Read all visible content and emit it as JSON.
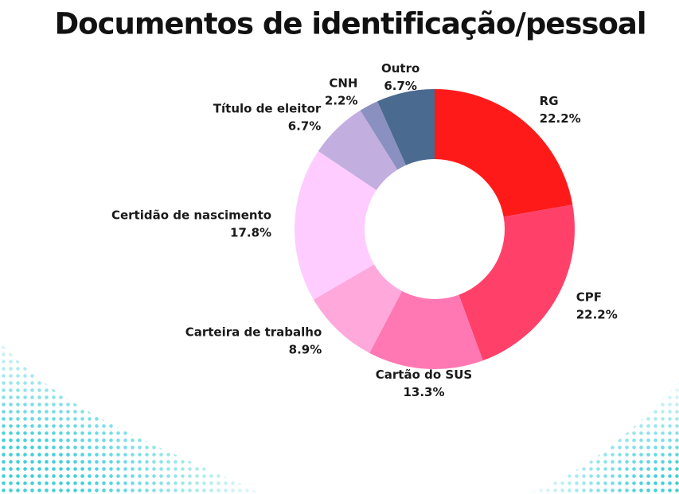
{
  "chart_data": {
    "type": "donut",
    "title": "Documentos de identificação/pessoal",
    "categories": [
      "RG",
      "CPF",
      "Cartão do SUS",
      "Carteira de trabalho",
      "Certidão de nascimento",
      "Título de eleitor",
      "CNH",
      "Outro"
    ],
    "values": [
      22.2,
      22.2,
      13.3,
      8.9,
      17.8,
      6.7,
      2.2,
      6.7
    ],
    "value_labels": [
      "22.2%",
      "22.2%",
      "13.3%",
      "8.9%",
      "17.8%",
      "6.7%",
      "2.2%",
      "6.7%"
    ],
    "colors": [
      "#ff1a1a",
      "#ff4169",
      "#ff78b4",
      "#ffa8dc",
      "#ffccff",
      "#c3aee0",
      "#8a90c0",
      "#4a6a90"
    ]
  }
}
